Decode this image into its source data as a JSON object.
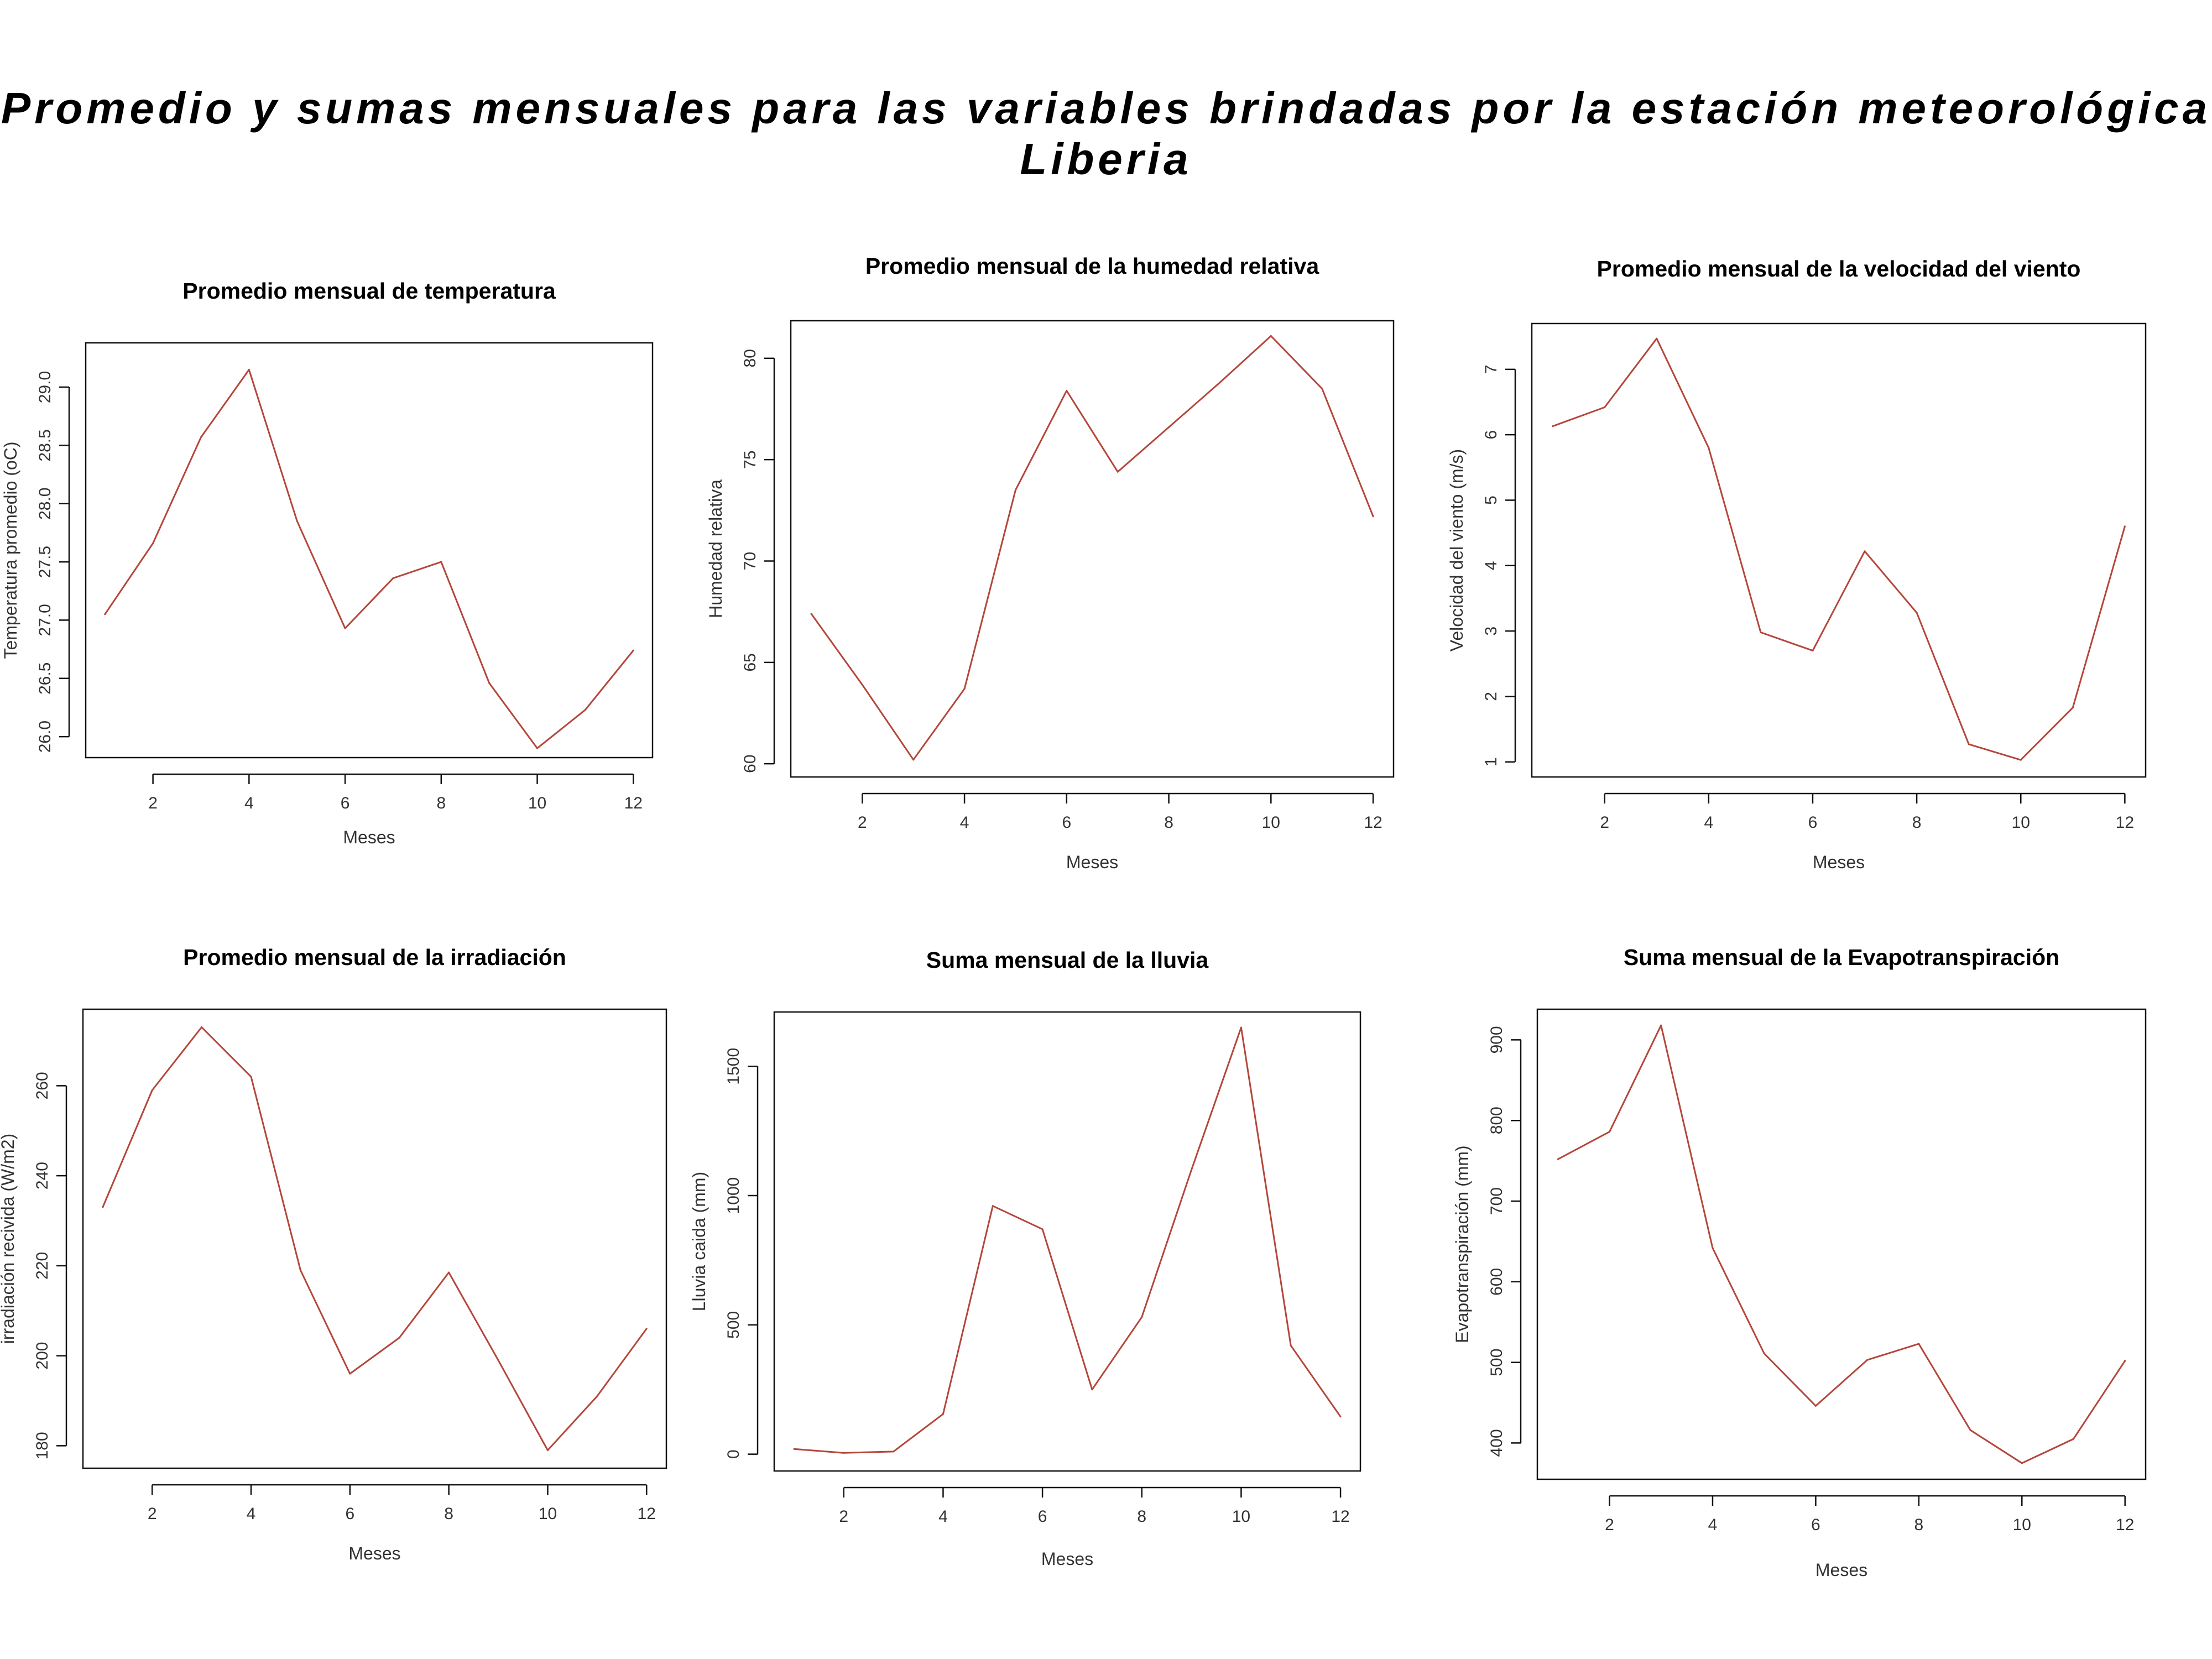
{
  "main_title": "Promedio y sumas mensuales para las variables brindadas por la estación meteorológica Liberia",
  "colors": {
    "series": "#b5463a",
    "axes": "#111111"
  },
  "chart_data": [
    {
      "type": "line",
      "title": "Promedio mensual de temperatura",
      "xlabel": "Meses",
      "ylabel": "Temperatura promedio (oC)",
      "x": [
        1,
        2,
        3,
        4,
        5,
        6,
        7,
        8,
        9,
        10,
        11,
        12
      ],
      "values": [
        27.05,
        27.66,
        28.57,
        29.15,
        27.85,
        26.93,
        27.36,
        27.5,
        26.46,
        25.9,
        26.23,
        26.74
      ],
      "xlim": [
        0.6,
        12.4
      ],
      "ylim": [
        25.82,
        29.38
      ],
      "xticks": [
        2,
        4,
        6,
        8,
        10,
        12
      ],
      "yticks": [
        26.0,
        26.5,
        27.0,
        27.5,
        28.0,
        28.5,
        29.0
      ],
      "ytick_labels": [
        "26.0",
        "26.5",
        "27.0",
        "27.5",
        "28.0",
        "28.5",
        "29.0"
      ],
      "grid": false
    },
    {
      "type": "line",
      "title": "Promedio mensual de la humedad relativa",
      "xlabel": "Meses",
      "ylabel": "Humedad relativa",
      "x": [
        1,
        2,
        3,
        4,
        5,
        6,
        7,
        8,
        9,
        10,
        11,
        12
      ],
      "values": [
        67.4,
        63.9,
        60.2,
        63.7,
        73.5,
        78.4,
        74.4,
        76.6,
        78.8,
        81.1,
        78.5,
        72.2
      ],
      "xlim": [
        0.6,
        12.4
      ],
      "ylim": [
        59.35,
        81.85
      ],
      "xticks": [
        2,
        4,
        6,
        8,
        10,
        12
      ],
      "yticks": [
        60,
        65,
        70,
        75,
        80
      ],
      "ytick_labels": [
        "60",
        "65",
        "70",
        "75",
        "80"
      ],
      "grid": false
    },
    {
      "type": "line",
      "title": "Promedio mensual de la velocidad del viento",
      "xlabel": "Meses",
      "ylabel": "Velocidad del viento (m/s)",
      "x": [
        1,
        2,
        3,
        4,
        5,
        6,
        7,
        8,
        9,
        10,
        11,
        12
      ],
      "values": [
        6.13,
        6.42,
        7.47,
        5.8,
        2.98,
        2.7,
        4.22,
        3.28,
        1.27,
        1.03,
        1.83,
        4.6
      ],
      "xlim": [
        0.6,
        12.4
      ],
      "ylim": [
        0.77,
        7.7
      ],
      "xticks": [
        2,
        4,
        6,
        8,
        10,
        12
      ],
      "yticks": [
        1,
        2,
        3,
        4,
        5,
        6,
        7
      ],
      "ytick_labels": [
        "1",
        "2",
        "3",
        "4",
        "5",
        "6",
        "7"
      ],
      "grid": false
    },
    {
      "type": "line",
      "title": "Promedio mensual de la irradiación",
      "xlabel": "Meses",
      "ylabel": "irradiación recivida (W/m2)",
      "x": [
        1,
        2,
        3,
        4,
        5,
        6,
        7,
        8,
        9,
        10,
        11,
        12
      ],
      "values": [
        233,
        259,
        273,
        262,
        219,
        196,
        204,
        218.5,
        199,
        179,
        191,
        206
      ],
      "xlim": [
        0.6,
        12.4
      ],
      "ylim": [
        175,
        277
      ],
      "xticks": [
        2,
        4,
        6,
        8,
        10,
        12
      ],
      "yticks": [
        180,
        200,
        220,
        240,
        260
      ],
      "ytick_labels": [
        "180",
        "200",
        "220",
        "240",
        "260"
      ],
      "grid": false
    },
    {
      "type": "line",
      "title": "Suma mensual de la lluvia",
      "xlabel": "Meses",
      "ylabel": "Lluvia caida (mm)",
      "x": [
        1,
        2,
        3,
        4,
        5,
        6,
        7,
        8,
        9,
        10,
        11,
        12
      ],
      "values": [
        20,
        5,
        10,
        155,
        960,
        870,
        250,
        530,
        1100,
        1650,
        420,
        145
      ],
      "xlim": [
        0.6,
        12.4
      ],
      "ylim": [
        -65,
        1710
      ],
      "xticks": [
        2,
        4,
        6,
        8,
        10,
        12
      ],
      "yticks": [
        0,
        500,
        1000,
        1500
      ],
      "ytick_labels": [
        "0",
        "500",
        "1000",
        "1500"
      ],
      "grid": false
    },
    {
      "type": "line",
      "title": "Suma mensual de la Evapotranspiración",
      "xlabel": "Meses",
      "ylabel": "Evapotranspiración (mm)",
      "x": [
        1,
        2,
        3,
        4,
        5,
        6,
        7,
        8,
        9,
        10,
        11,
        12
      ],
      "values": [
        752,
        786,
        918,
        642,
        511,
        446,
        503,
        523,
        416,
        375,
        405,
        502
      ],
      "xlim": [
        0.6,
        12.4
      ],
      "ylim": [
        355,
        938
      ],
      "xticks": [
        2,
        4,
        6,
        8,
        10,
        12
      ],
      "yticks": [
        400,
        500,
        600,
        700,
        800,
        900
      ],
      "ytick_labels": [
        "400",
        "500",
        "600",
        "700",
        "800",
        "900"
      ],
      "grid": false
    }
  ]
}
